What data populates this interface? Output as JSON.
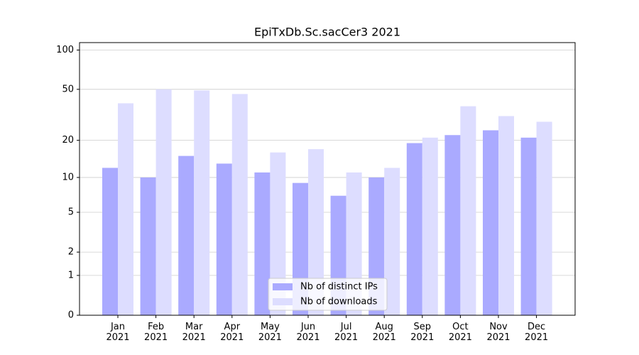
{
  "chart_data": {
    "type": "bar",
    "title": "EpiTxDb.Sc.sacCer3 2021",
    "categories": [
      "Jan\n2021",
      "Feb\n2021",
      "Mar\n2021",
      "Apr\n2021",
      "May\n2021",
      "Jun\n2021",
      "Jul\n2021",
      "Aug\n2021",
      "Sep\n2021",
      "Oct\n2021",
      "Nov\n2021",
      "Dec\n2021"
    ],
    "series": [
      {
        "name": "Nb of distinct IPs",
        "color": "#aaaaff",
        "values": [
          12,
          10,
          15,
          13,
          11,
          9,
          7,
          10,
          19,
          22,
          24,
          21
        ]
      },
      {
        "name": "Nb of downloads",
        "color": "#ddddff",
        "values": [
          39,
          50,
          49,
          46,
          16,
          17,
          11,
          12,
          21,
          37,
          31,
          28
        ]
      }
    ],
    "yscale": "log1p",
    "ylim": [
      0,
      114
    ],
    "yticks": [
      0,
      1,
      2,
      5,
      10,
      20,
      50,
      100
    ],
    "grid": true,
    "legend": "lower center"
  }
}
